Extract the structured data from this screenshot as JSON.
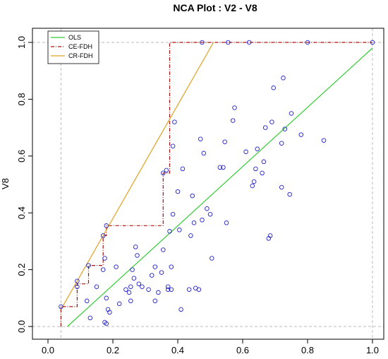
{
  "chart_data": {
    "type": "scatter",
    "title": "NCA Plot : V2 - V8",
    "xlabel": "",
    "ylabel": "V8",
    "xlim": [
      0.0,
      1.0
    ],
    "ylim": [
      0.0,
      1.0
    ],
    "x_ticks": [
      "0.0",
      "0.2",
      "0.4",
      "0.6",
      "0.8",
      "1.0"
    ],
    "y_ticks": [
      "0.0",
      "0.2",
      "0.4",
      "0.6",
      "0.8",
      "1.0"
    ],
    "grid": false,
    "legend_position": "top-left",
    "colors": {
      "points": "#2222cc",
      "ols": "#33cc33",
      "ce_fdh": "#aa1111",
      "cr_fdh": "#e0a020",
      "reference": "#bbbbbb"
    },
    "series": [
      {
        "name": "OLS",
        "kind": "line",
        "points": [
          [
            0.06,
            0.0
          ],
          [
            1.0,
            0.98
          ]
        ]
      },
      {
        "name": "CE-FDH",
        "kind": "step",
        "points": [
          [
            0.04,
            0.0
          ],
          [
            0.04,
            0.07
          ],
          [
            0.09,
            0.07
          ],
          [
            0.09,
            0.15
          ],
          [
            0.125,
            0.15
          ],
          [
            0.125,
            0.215
          ],
          [
            0.17,
            0.215
          ],
          [
            0.17,
            0.32
          ],
          [
            0.18,
            0.32
          ],
          [
            0.18,
            0.355
          ],
          [
            0.355,
            0.355
          ],
          [
            0.355,
            0.54
          ],
          [
            0.375,
            0.54
          ],
          [
            0.375,
            1.0
          ],
          [
            1.0,
            1.0
          ]
        ]
      },
      {
        "name": "CR-FDH",
        "kind": "line",
        "points": [
          [
            0.04,
            0.06
          ],
          [
            0.51,
            1.0
          ]
        ]
      }
    ],
    "scatter_points": [
      [
        0.04,
        0.07
      ],
      [
        0.09,
        0.14
      ],
      [
        0.09,
        0.16
      ],
      [
        0.125,
        0.215
      ],
      [
        0.12,
        0.09
      ],
      [
        0.13,
        0.03
      ],
      [
        0.15,
        0.14
      ],
      [
        0.17,
        0.32
      ],
      [
        0.17,
        0.2
      ],
      [
        0.175,
        0.24
      ],
      [
        0.18,
        0.355
      ],
      [
        0.18,
        0.1
      ],
      [
        0.185,
        0.06
      ],
      [
        0.19,
        0.05
      ],
      [
        0.175,
        0.015
      ],
      [
        0.18,
        0.01
      ],
      [
        0.21,
        0.21
      ],
      [
        0.22,
        0.08
      ],
      [
        0.24,
        0.13
      ],
      [
        0.25,
        0.12
      ],
      [
        0.255,
        0.14
      ],
      [
        0.255,
        0.09
      ],
      [
        0.26,
        0.2
      ],
      [
        0.265,
        0.17
      ],
      [
        0.27,
        0.28
      ],
      [
        0.275,
        0.25
      ],
      [
        0.28,
        0.15
      ],
      [
        0.29,
        0.14
      ],
      [
        0.31,
        0.13
      ],
      [
        0.32,
        0.18
      ],
      [
        0.33,
        0.21
      ],
      [
        0.33,
        0.09
      ],
      [
        0.34,
        0.12
      ],
      [
        0.35,
        0.19
      ],
      [
        0.355,
        0.27
      ],
      [
        0.355,
        0.54
      ],
      [
        0.365,
        0.55
      ],
      [
        0.37,
        0.13
      ],
      [
        0.37,
        0.14
      ],
      [
        0.375,
        0.335
      ],
      [
        0.38,
        0.13
      ],
      [
        0.38,
        0.21
      ],
      [
        0.385,
        0.395
      ],
      [
        0.385,
        0.635
      ],
      [
        0.39,
        0.72
      ],
      [
        0.4,
        0.475
      ],
      [
        0.405,
        0.34
      ],
      [
        0.41,
        0.06
      ],
      [
        0.415,
        0.555
      ],
      [
        0.435,
        0.13
      ],
      [
        0.44,
        0.32
      ],
      [
        0.445,
        0.46
      ],
      [
        0.45,
        0.365
      ],
      [
        0.455,
        0.135
      ],
      [
        0.465,
        0.13
      ],
      [
        0.47,
        0.66
      ],
      [
        0.475,
        0.375
      ],
      [
        0.48,
        0.61
      ],
      [
        0.49,
        0.415
      ],
      [
        0.475,
        1.0
      ],
      [
        0.5,
        0.395
      ],
      [
        0.505,
        0.24
      ],
      [
        0.53,
        0.56
      ],
      [
        0.54,
        0.56
      ],
      [
        0.545,
        0.65
      ],
      [
        0.55,
        0.365
      ],
      [
        0.555,
        1.0
      ],
      [
        0.57,
        0.725
      ],
      [
        0.575,
        0.77
      ],
      [
        0.61,
        0.615
      ],
      [
        0.62,
        1.0
      ],
      [
        0.63,
        0.495
      ],
      [
        0.635,
        0.51
      ],
      [
        0.64,
        0.555
      ],
      [
        0.645,
        0.625
      ],
      [
        0.66,
        0.54
      ],
      [
        0.665,
        0.58
      ],
      [
        0.67,
        0.7
      ],
      [
        0.68,
        0.31
      ],
      [
        0.685,
        0.32
      ],
      [
        0.69,
        0.72
      ],
      [
        0.695,
        0.84
      ],
      [
        0.72,
        0.49
      ],
      [
        0.72,
        0.645
      ],
      [
        0.725,
        0.875
      ],
      [
        0.73,
        0.695
      ],
      [
        0.745,
        0.465
      ],
      [
        0.75,
        0.75
      ],
      [
        0.78,
        0.675
      ],
      [
        0.8,
        1.0
      ],
      [
        0.85,
        0.655
      ],
      [
        1.0,
        1.0
      ]
    ]
  }
}
